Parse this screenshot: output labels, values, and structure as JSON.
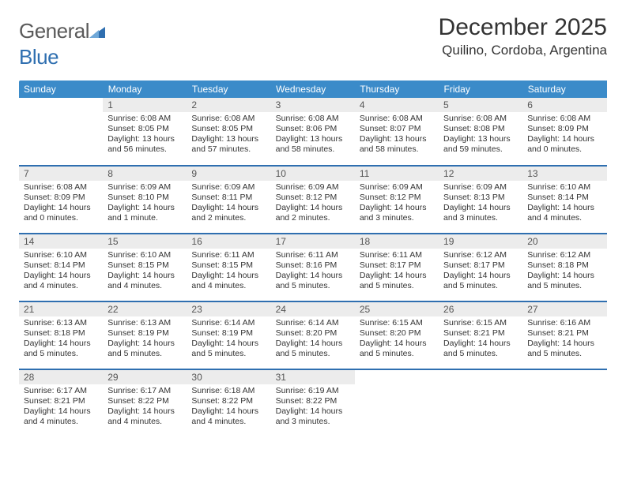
{
  "brand": {
    "name_a": "General",
    "name_b": "Blue"
  },
  "title": "December 2025",
  "location": "Quilino, Cordoba, Argentina",
  "colors": {
    "header_bg": "#3b8bc9",
    "header_text": "#ffffff",
    "rule": "#2f6fb0",
    "daynum_bg": "#ececec",
    "body_text": "#333333",
    "logo_gray": "#5a5a5a",
    "logo_blue": "#2f6fb0",
    "page_bg": "#ffffff"
  },
  "typography": {
    "month_title_pt": 30,
    "location_pt": 17,
    "weekday_pt": 12,
    "daynum_pt": 12,
    "body_pt": 10.5,
    "logo_pt": 26
  },
  "weekdays": [
    "Sunday",
    "Monday",
    "Tuesday",
    "Wednesday",
    "Thursday",
    "Friday",
    "Saturday"
  ],
  "layout": {
    "first_weekday_offset": 1,
    "days_in_month": 31,
    "rows": 5,
    "cols": 7
  },
  "days": [
    {
      "n": 1,
      "sunrise": "6:08 AM",
      "sunset": "8:05 PM",
      "daylight": "13 hours and 56 minutes."
    },
    {
      "n": 2,
      "sunrise": "6:08 AM",
      "sunset": "8:05 PM",
      "daylight": "13 hours and 57 minutes."
    },
    {
      "n": 3,
      "sunrise": "6:08 AM",
      "sunset": "8:06 PM",
      "daylight": "13 hours and 58 minutes."
    },
    {
      "n": 4,
      "sunrise": "6:08 AM",
      "sunset": "8:07 PM",
      "daylight": "13 hours and 58 minutes."
    },
    {
      "n": 5,
      "sunrise": "6:08 AM",
      "sunset": "8:08 PM",
      "daylight": "13 hours and 59 minutes."
    },
    {
      "n": 6,
      "sunrise": "6:08 AM",
      "sunset": "8:09 PM",
      "daylight": "14 hours and 0 minutes."
    },
    {
      "n": 7,
      "sunrise": "6:08 AM",
      "sunset": "8:09 PM",
      "daylight": "14 hours and 0 minutes."
    },
    {
      "n": 8,
      "sunrise": "6:09 AM",
      "sunset": "8:10 PM",
      "daylight": "14 hours and 1 minute."
    },
    {
      "n": 9,
      "sunrise": "6:09 AM",
      "sunset": "8:11 PM",
      "daylight": "14 hours and 2 minutes."
    },
    {
      "n": 10,
      "sunrise": "6:09 AM",
      "sunset": "8:12 PM",
      "daylight": "14 hours and 2 minutes."
    },
    {
      "n": 11,
      "sunrise": "6:09 AM",
      "sunset": "8:12 PM",
      "daylight": "14 hours and 3 minutes."
    },
    {
      "n": 12,
      "sunrise": "6:09 AM",
      "sunset": "8:13 PM",
      "daylight": "14 hours and 3 minutes."
    },
    {
      "n": 13,
      "sunrise": "6:10 AM",
      "sunset": "8:14 PM",
      "daylight": "14 hours and 4 minutes."
    },
    {
      "n": 14,
      "sunrise": "6:10 AM",
      "sunset": "8:14 PM",
      "daylight": "14 hours and 4 minutes."
    },
    {
      "n": 15,
      "sunrise": "6:10 AM",
      "sunset": "8:15 PM",
      "daylight": "14 hours and 4 minutes."
    },
    {
      "n": 16,
      "sunrise": "6:11 AM",
      "sunset": "8:15 PM",
      "daylight": "14 hours and 4 minutes."
    },
    {
      "n": 17,
      "sunrise": "6:11 AM",
      "sunset": "8:16 PM",
      "daylight": "14 hours and 5 minutes."
    },
    {
      "n": 18,
      "sunrise": "6:11 AM",
      "sunset": "8:17 PM",
      "daylight": "14 hours and 5 minutes."
    },
    {
      "n": 19,
      "sunrise": "6:12 AM",
      "sunset": "8:17 PM",
      "daylight": "14 hours and 5 minutes."
    },
    {
      "n": 20,
      "sunrise": "6:12 AM",
      "sunset": "8:18 PM",
      "daylight": "14 hours and 5 minutes."
    },
    {
      "n": 21,
      "sunrise": "6:13 AM",
      "sunset": "8:18 PM",
      "daylight": "14 hours and 5 minutes."
    },
    {
      "n": 22,
      "sunrise": "6:13 AM",
      "sunset": "8:19 PM",
      "daylight": "14 hours and 5 minutes."
    },
    {
      "n": 23,
      "sunrise": "6:14 AM",
      "sunset": "8:19 PM",
      "daylight": "14 hours and 5 minutes."
    },
    {
      "n": 24,
      "sunrise": "6:14 AM",
      "sunset": "8:20 PM",
      "daylight": "14 hours and 5 minutes."
    },
    {
      "n": 25,
      "sunrise": "6:15 AM",
      "sunset": "8:20 PM",
      "daylight": "14 hours and 5 minutes."
    },
    {
      "n": 26,
      "sunrise": "6:15 AM",
      "sunset": "8:21 PM",
      "daylight": "14 hours and 5 minutes."
    },
    {
      "n": 27,
      "sunrise": "6:16 AM",
      "sunset": "8:21 PM",
      "daylight": "14 hours and 5 minutes."
    },
    {
      "n": 28,
      "sunrise": "6:17 AM",
      "sunset": "8:21 PM",
      "daylight": "14 hours and 4 minutes."
    },
    {
      "n": 29,
      "sunrise": "6:17 AM",
      "sunset": "8:22 PM",
      "daylight": "14 hours and 4 minutes."
    },
    {
      "n": 30,
      "sunrise": "6:18 AM",
      "sunset": "8:22 PM",
      "daylight": "14 hours and 4 minutes."
    },
    {
      "n": 31,
      "sunrise": "6:19 AM",
      "sunset": "8:22 PM",
      "daylight": "14 hours and 3 minutes."
    }
  ],
  "labels": {
    "sunrise": "Sunrise:",
    "sunset": "Sunset:",
    "daylight": "Daylight:"
  }
}
